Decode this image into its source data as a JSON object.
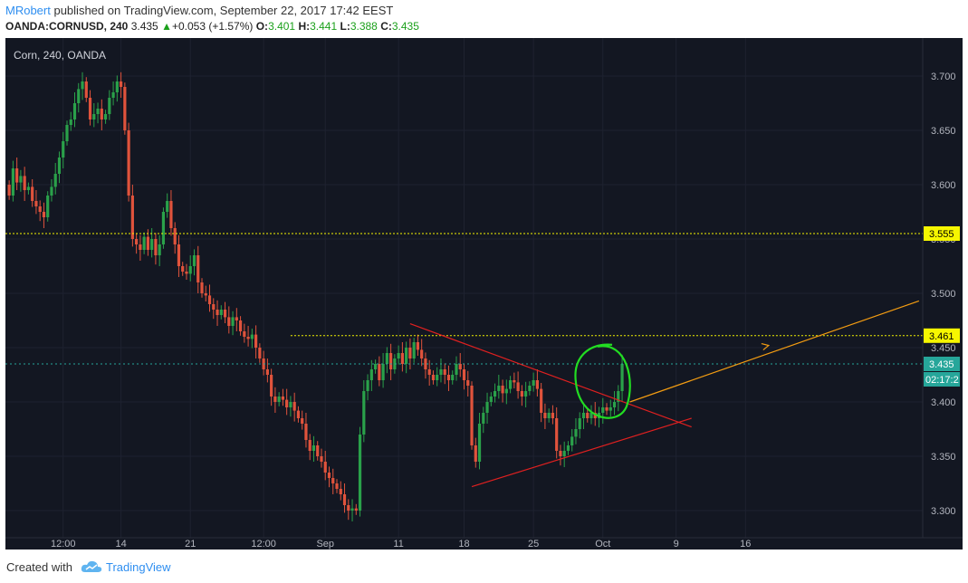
{
  "header": {
    "author": "MRobert",
    "published_text": " published on TradingView.com, September 22, 2017 17:42 EEST",
    "symbol": "OANDA:CORNUSD, 240",
    "last": "3.435",
    "change": "+0.053 (+1.57%)",
    "open_label": "O:",
    "open": "3.401",
    "high_label": "H:",
    "high": "3.441",
    "low_label": "L:",
    "low": "3.388",
    "close_label": "C:",
    "close": "3.435"
  },
  "footer": {
    "created_with": "Created with",
    "brand": "TradingView"
  },
  "colors": {
    "background": "#131722",
    "up": "#2aa14a",
    "down": "#e0533c",
    "grid": "#1e2230",
    "level_line": "#f6f600",
    "trend_red": "#e02020",
    "projection": "#f39c12",
    "highlight_circle": "#22dd22",
    "axis_text": "#b2b5be",
    "price_tag_current": "#26a69a"
  },
  "chart_data": {
    "type": "candlestick",
    "title": "Corn, 240, OANDA",
    "x_tick_labels": [
      "12:00",
      "14",
      "21",
      "12:00",
      "Sep",
      "11",
      "18",
      "25",
      "Oct",
      "9",
      "16"
    ],
    "y_ticks": [
      3.7,
      3.65,
      3.6,
      3.55,
      3.5,
      3.45,
      3.4,
      3.35,
      3.3
    ],
    "ylim": [
      3.275,
      3.735
    ],
    "n_slots": 237,
    "horizontal_levels": [
      {
        "value": 3.555,
        "label": "3.555",
        "style": "dotted"
      },
      {
        "value": 3.461,
        "label": "3.461",
        "style": "dotted",
        "from_slot": 73
      },
      {
        "value": 3.435,
        "label": "3.435",
        "style": "dotted-current"
      }
    ],
    "countdown_label": "02:17:2",
    "trendlines": [
      {
        "name": "upper",
        "from": [
          104,
          3.472
        ],
        "to": [
          177,
          3.377
        ]
      },
      {
        "name": "lower",
        "from": [
          120,
          3.322
        ],
        "to": [
          177,
          3.385
        ]
      }
    ],
    "projection": {
      "from": [
        161,
        3.4
      ],
      "to": [
        236,
        3.493
      ],
      "arrow_at": [
        197,
        3.452
      ]
    },
    "closes": [
      3.59,
      3.615,
      3.602,
      3.608,
      3.595,
      3.598,
      3.585,
      3.58,
      3.575,
      3.57,
      3.59,
      3.598,
      3.61,
      3.625,
      3.64,
      3.655,
      3.66,
      3.675,
      3.688,
      3.695,
      3.68,
      3.66,
      3.665,
      3.67,
      3.66,
      3.665,
      3.68,
      3.685,
      3.695,
      3.69,
      3.65,
      3.59,
      3.55,
      3.545,
      3.54,
      3.552,
      3.54,
      3.55,
      3.535,
      3.545,
      3.575,
      3.585,
      3.56,
      3.545,
      3.525,
      3.52,
      3.518,
      3.525,
      3.535,
      3.51,
      3.5,
      3.498,
      3.49,
      3.485,
      3.48,
      3.485,
      3.478,
      3.47,
      3.478,
      3.475,
      3.465,
      3.46,
      3.458,
      3.462,
      3.45,
      3.44,
      3.43,
      3.425,
      3.405,
      3.4,
      3.405,
      3.402,
      3.395,
      3.4,
      3.392,
      3.385,
      3.38,
      3.365,
      3.355,
      3.36,
      3.35,
      3.345,
      3.335,
      3.33,
      3.325,
      3.32,
      3.315,
      3.305,
      3.3,
      3.302,
      3.3,
      3.37,
      3.41,
      3.42,
      3.43,
      3.435,
      3.42,
      3.435,
      3.445,
      3.43,
      3.44,
      3.445,
      3.435,
      3.45,
      3.44,
      3.455,
      3.448,
      3.44,
      3.43,
      3.425,
      3.42,
      3.425,
      3.43,
      3.425,
      3.42,
      3.425,
      3.435,
      3.43,
      3.42,
      3.415,
      3.36,
      3.345,
      3.38,
      3.39,
      3.4,
      3.405,
      3.41,
      3.415,
      3.408,
      3.412,
      3.42,
      3.418,
      3.41,
      3.405,
      3.41,
      3.415,
      3.42,
      3.412,
      3.39,
      3.385,
      3.39,
      3.385,
      3.355,
      3.35,
      3.355,
      3.36,
      3.368,
      3.375,
      3.385,
      3.39,
      3.385,
      3.39,
      3.385,
      3.39,
      3.395,
      3.392,
      3.395,
      3.4,
      3.41,
      3.435
    ]
  }
}
